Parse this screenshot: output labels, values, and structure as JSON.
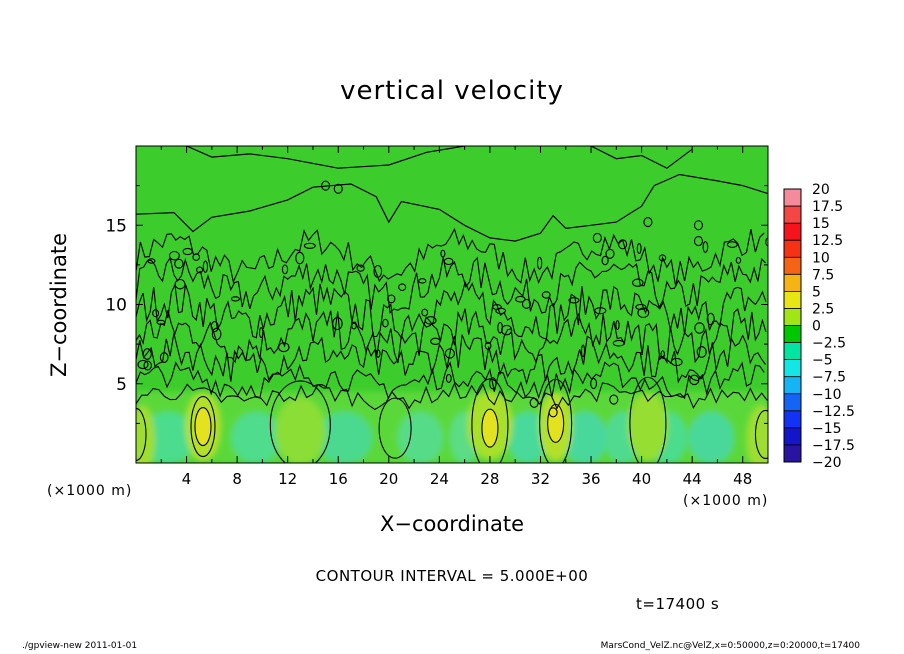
{
  "chart_data": {
    "type": "heatmap",
    "title": "vertical velocity",
    "xlabel": "X−coordinate",
    "ylabel": "Z−coordinate",
    "x_units_left": "(×1000 m)",
    "x_units_right": "(×1000 m)",
    "xlim": [
      0,
      50
    ],
    "ylim": [
      0,
      20
    ],
    "x_ticks": [
      "4",
      "8",
      "12",
      "16",
      "20",
      "24",
      "28",
      "32",
      "36",
      "40",
      "44",
      "48"
    ],
    "y_ticks": [
      "5",
      "10",
      "15"
    ],
    "colorbar": {
      "labels": [
        "20",
        "17.5",
        "15",
        "12.5",
        "10",
        "7.5",
        "5",
        "2.5",
        "0",
        "−2.5",
        "−5",
        "−7.5",
        "−10",
        "−12.5",
        "−15",
        "−17.5",
        "−20"
      ],
      "colors": [
        "#f58a9a",
        "#f54646",
        "#f5141e",
        "#f53214",
        "#f56414",
        "#f5b414",
        "#e6e614",
        "#a0e614",
        "#00c800",
        "#00e6a0",
        "#14e6e6",
        "#14b4f5",
        "#1464f5",
        "#1432f5",
        "#1414c8",
        "#2814a0",
        "#6414b4"
      ]
    },
    "contour_interval": "CONTOUR INTERVAL = 5.000E+00",
    "time_label": "t=17400 s",
    "footer_left": "./gpview-new  2011-01-01",
    "footer_right": "MarsCond_VelZ.nc@VelZ,x=0:50000,z=0:20000,t=17400"
  }
}
